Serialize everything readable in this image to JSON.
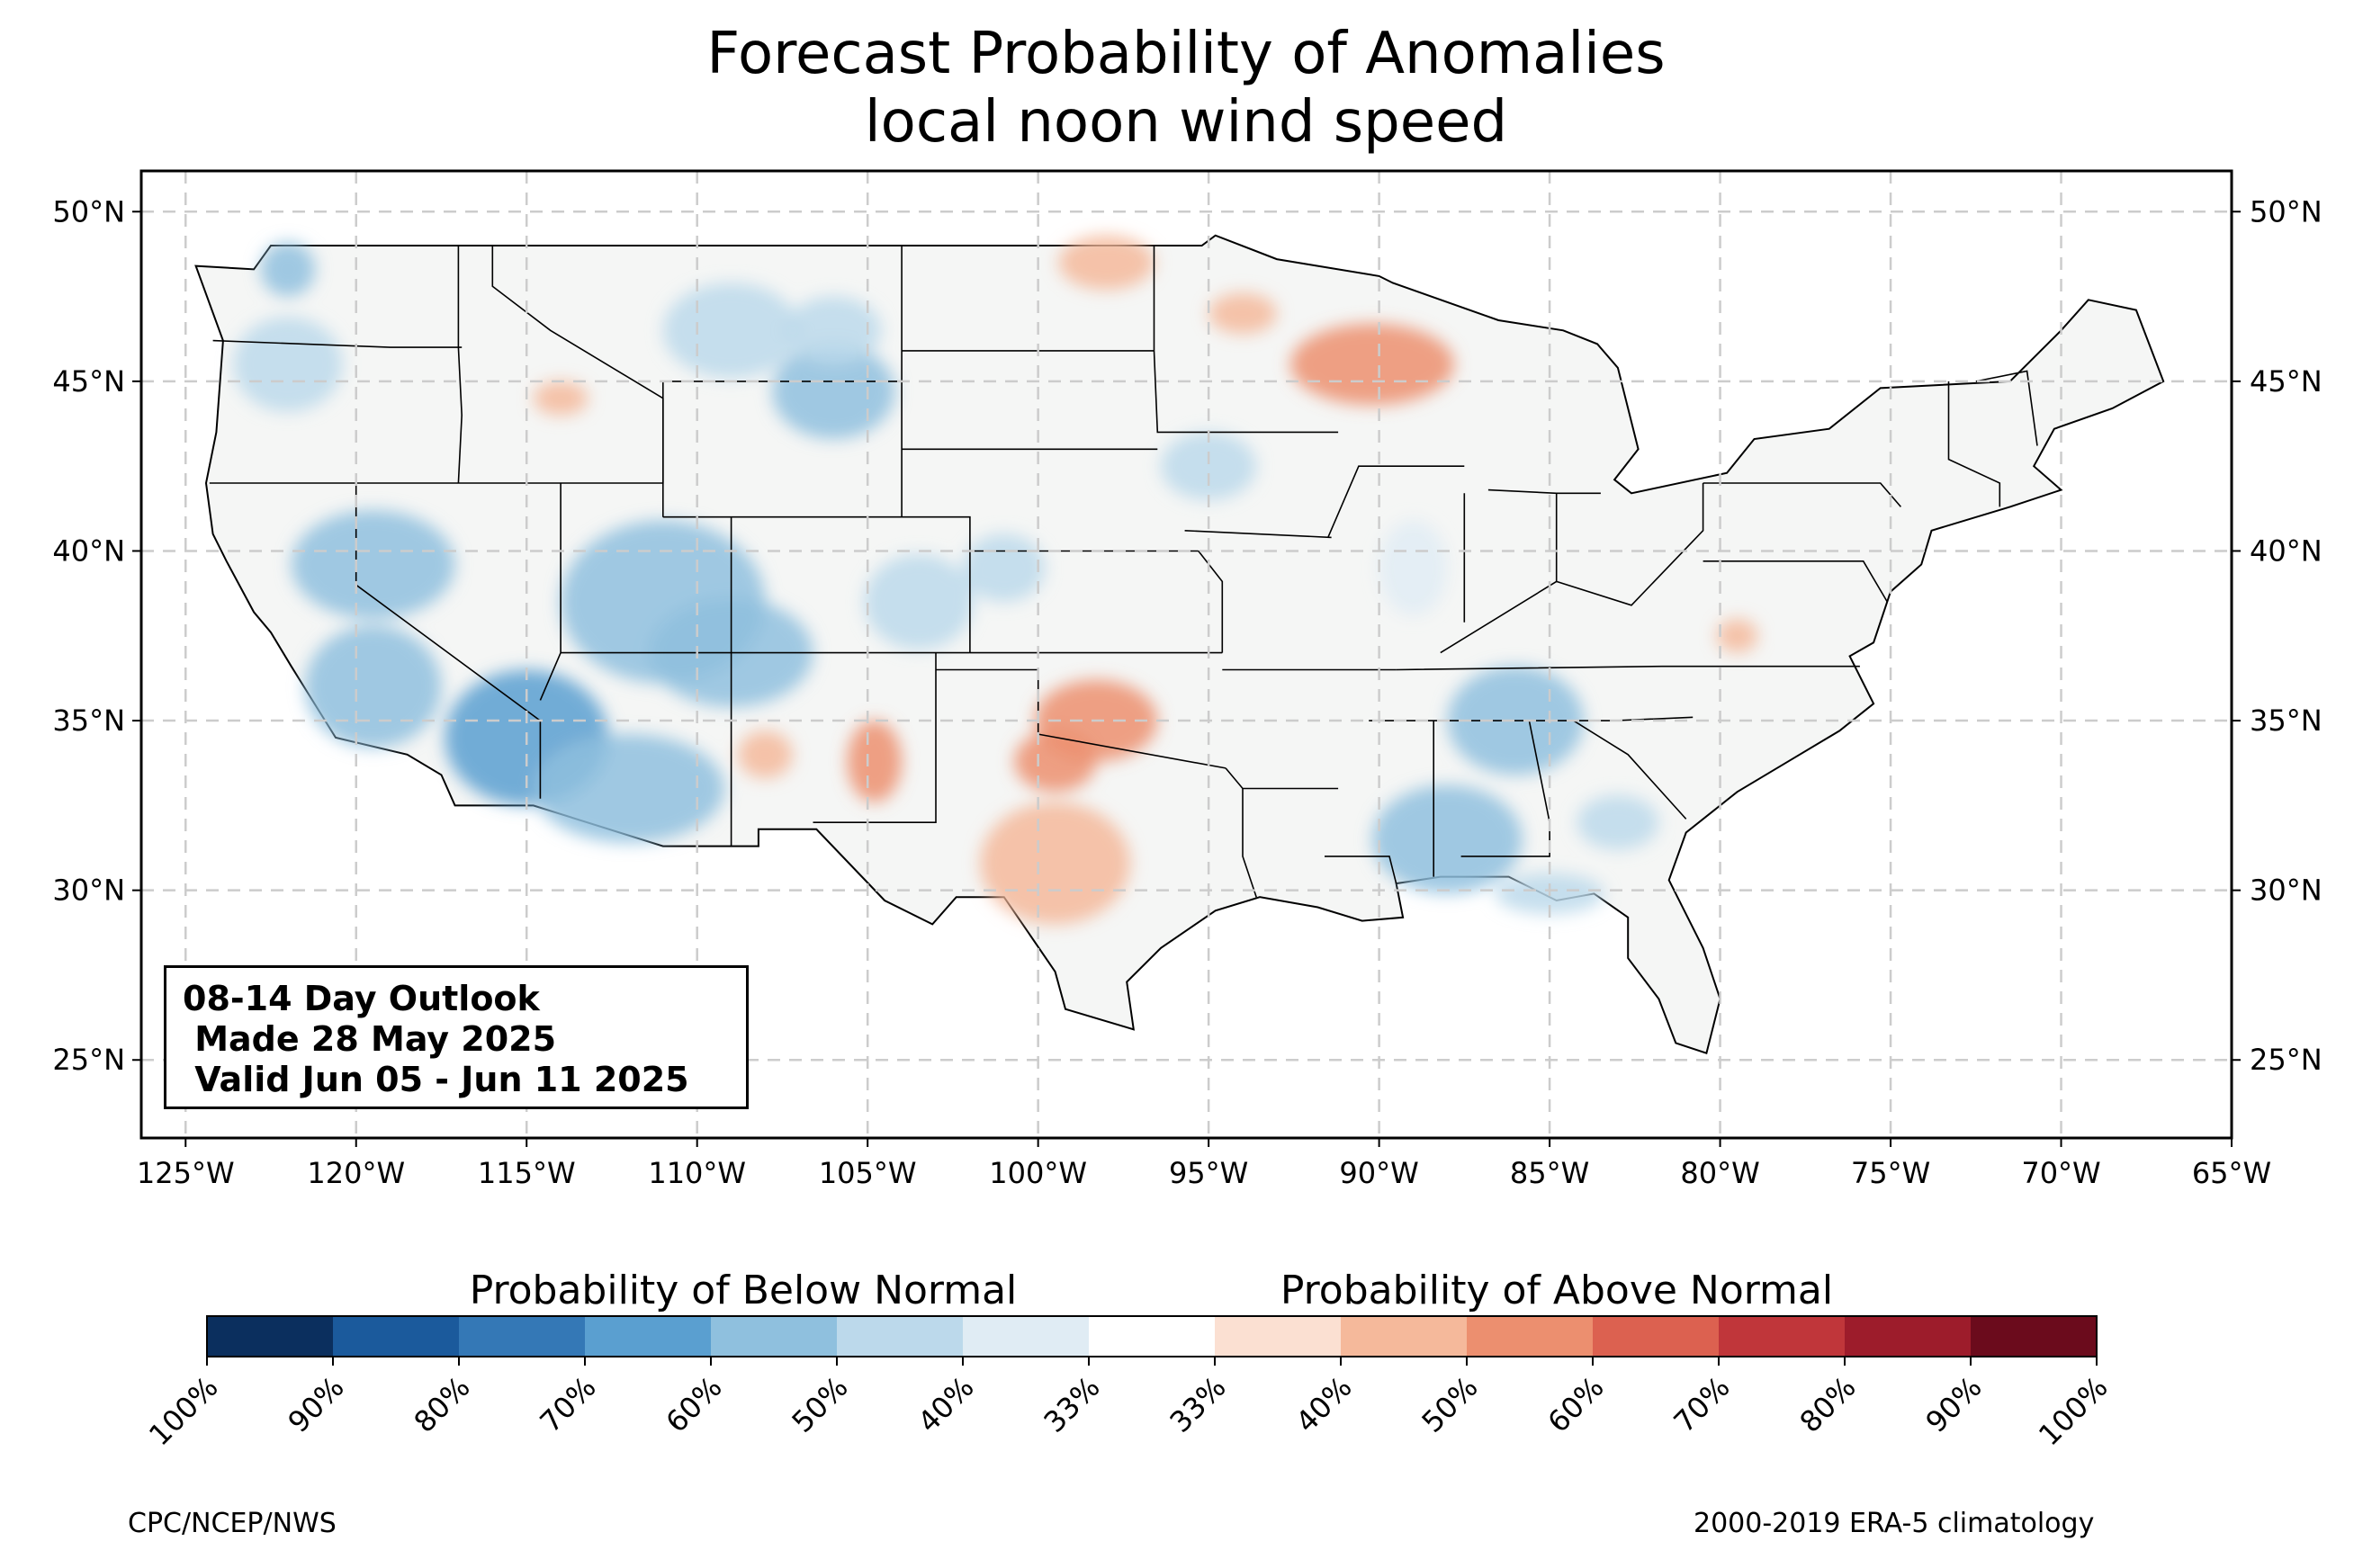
{
  "title": {
    "line1": "Forecast Probability of Anomalies",
    "line2": "local noon wind speed"
  },
  "outlook": {
    "line1": "08-14 Day Outlook",
    "line2": " Made 28 May 2025",
    "line3": " Valid Jun 05 - Jun 11 2025"
  },
  "axes": {
    "lon_ticks": [
      "125°W",
      "120°W",
      "115°W",
      "110°W",
      "105°W",
      "100°W",
      "95°W",
      "90°W",
      "85°W",
      "80°W",
      "75°W",
      "70°W",
      "65°W"
    ],
    "lat_ticks": [
      "50°N",
      "45°N",
      "40°N",
      "35°N",
      "30°N",
      "25°N"
    ],
    "lon_values": [
      -125,
      -120,
      -115,
      -110,
      -105,
      -100,
      -95,
      -90,
      -85,
      -80,
      -75,
      -70,
      -65
    ],
    "lat_values": [
      50,
      45,
      40,
      35,
      30,
      25
    ],
    "lon_range": [
      -126.3,
      -65.0
    ],
    "lat_range": [
      22.7,
      51.2
    ]
  },
  "colorbar": {
    "below_label": "Probability of Below Normal",
    "above_label": "Probability of Above Normal",
    "tick_labels": [
      "100%",
      "90%",
      "80%",
      "70%",
      "60%",
      "50%",
      "40%",
      "33%",
      "33%",
      "40%",
      "50%",
      "60%",
      "70%",
      "80%",
      "90%",
      "100%"
    ],
    "colors": [
      "#0b2f5e",
      "#1b5a9c",
      "#3478b6",
      "#5a9fd0",
      "#8fc0de",
      "#bcd9eb",
      "#e0ecf4",
      "#ffffff",
      "#fbe0d2",
      "#f5b99b",
      "#ec8f6f",
      "#dc6150",
      "#c0363a",
      "#9d1c2b",
      "#6b0b1c"
    ]
  },
  "footer": {
    "left": "CPC/NCEP/NWS",
    "right": "2000-2019 ERA-5 climatology"
  },
  "colors": {
    "land": "#f5f6f5",
    "grid": "#cccccc"
  },
  "anomalies": [
    {
      "lon": -122.0,
      "lat": 45.5,
      "rx": 1.6,
      "ry": 1.4,
      "level": 5
    },
    {
      "lon": -122.0,
      "lat": 48.3,
      "rx": 0.8,
      "ry": 0.8,
      "level": 4
    },
    {
      "lon": -119.5,
      "lat": 39.6,
      "rx": 2.4,
      "ry": 1.6,
      "level": 4
    },
    {
      "lon": -119.5,
      "lat": 36.0,
      "rx": 2.0,
      "ry": 1.8,
      "level": 4
    },
    {
      "lon": -115.0,
      "lat": 34.5,
      "rx": 2.4,
      "ry": 2.0,
      "level": 3
    },
    {
      "lon": -112.0,
      "lat": 33.0,
      "rx": 2.8,
      "ry": 1.6,
      "level": 4
    },
    {
      "lon": -111.0,
      "lat": 38.5,
      "rx": 3.0,
      "ry": 2.4,
      "level": 4
    },
    {
      "lon": -109.0,
      "lat": 37.0,
      "rx": 2.4,
      "ry": 1.6,
      "level": 4
    },
    {
      "lon": -109.0,
      "lat": 46.5,
      "rx": 2.0,
      "ry": 1.4,
      "level": 5
    },
    {
      "lon": -106.0,
      "lat": 44.7,
      "rx": 1.8,
      "ry": 1.4,
      "level": 4
    },
    {
      "lon": -106.0,
      "lat": 46.5,
      "rx": 1.4,
      "ry": 1.0,
      "level": 5
    },
    {
      "lon": -103.5,
      "lat": 38.5,
      "rx": 1.6,
      "ry": 1.4,
      "level": 5
    },
    {
      "lon": -101.0,
      "lat": 39.5,
      "rx": 1.2,
      "ry": 1.0,
      "level": 5
    },
    {
      "lon": -95.0,
      "lat": 42.5,
      "rx": 1.4,
      "ry": 1.0,
      "level": 5
    },
    {
      "lon": -86.0,
      "lat": 35.0,
      "rx": 2.0,
      "ry": 1.6,
      "level": 4
    },
    {
      "lon": -88.0,
      "lat": 31.5,
      "rx": 2.2,
      "ry": 1.6,
      "level": 4
    },
    {
      "lon": -85.0,
      "lat": 29.9,
      "rx": 1.6,
      "ry": 0.6,
      "level": 5
    },
    {
      "lon": -83.0,
      "lat": 32.0,
      "rx": 1.2,
      "ry": 0.8,
      "level": 5
    },
    {
      "lon": -89.0,
      "lat": 39.5,
      "rx": 1.0,
      "ry": 1.4,
      "level": 6
    },
    {
      "lon": -98.3,
      "lat": 35.0,
      "rx": 1.8,
      "ry": 1.2,
      "level": 10
    },
    {
      "lon": -99.5,
      "lat": 33.8,
      "rx": 1.2,
      "ry": 0.9,
      "level": 10
    },
    {
      "lon": -99.5,
      "lat": 30.8,
      "rx": 2.2,
      "ry": 1.8,
      "level": 9
    },
    {
      "lon": -104.8,
      "lat": 33.8,
      "rx": 0.8,
      "ry": 1.2,
      "level": 10
    },
    {
      "lon": -108.0,
      "lat": 34.0,
      "rx": 0.8,
      "ry": 0.7,
      "level": 9
    },
    {
      "lon": -90.2,
      "lat": 45.5,
      "rx": 2.4,
      "ry": 1.2,
      "level": 10
    },
    {
      "lon": -98.0,
      "lat": 48.5,
      "rx": 1.4,
      "ry": 0.8,
      "level": 9
    },
    {
      "lon": -94.0,
      "lat": 47.0,
      "rx": 1.0,
      "ry": 0.6,
      "level": 9
    },
    {
      "lon": -114.0,
      "lat": 44.5,
      "rx": 0.8,
      "ry": 0.5,
      "level": 9
    },
    {
      "lon": -79.5,
      "lat": 37.5,
      "rx": 0.6,
      "ry": 0.5,
      "level": 9
    }
  ]
}
